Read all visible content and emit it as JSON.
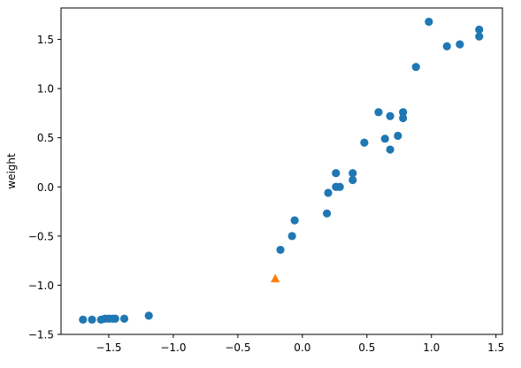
{
  "chart_data": {
    "type": "scatter",
    "title": "",
    "xlabel": "",
    "ylabel": "weight",
    "xlim": [
      -1.87,
      1.55
    ],
    "ylim": [
      -1.5,
      1.82
    ],
    "grid": false,
    "xticks": [
      -1.5,
      -1.0,
      -0.5,
      0.0,
      0.5,
      1.0,
      1.5
    ],
    "xtick_labels": [
      "−1.5",
      "−1.0",
      "−0.5",
      "0.0",
      "0.5",
      "1.0",
      "1.5"
    ],
    "yticks": [
      -1.5,
      -1.0,
      -0.5,
      0.0,
      0.5,
      1.0,
      1.5
    ],
    "ytick_labels": [
      "−1.5",
      "−1.0",
      "−0.5",
      "0.0",
      "0.5",
      "1.0",
      "1.5"
    ],
    "series": [
      {
        "marker": "circle",
        "color": "#1f77b4",
        "points": [
          [
            -1.7,
            -1.35
          ],
          [
            -1.63,
            -1.35
          ],
          [
            -1.56,
            -1.35
          ],
          [
            -1.53,
            -1.34
          ],
          [
            -1.5,
            -1.34
          ],
          [
            -1.47,
            -1.34
          ],
          [
            -1.45,
            -1.34
          ],
          [
            -1.38,
            -1.34
          ],
          [
            -1.19,
            -1.31
          ],
          [
            -0.17,
            -0.64
          ],
          [
            -0.08,
            -0.5
          ],
          [
            -0.06,
            -0.34
          ],
          [
            0.19,
            -0.27
          ],
          [
            0.2,
            -0.06
          ],
          [
            0.26,
            0.0
          ],
          [
            0.26,
            0.14
          ],
          [
            0.29,
            0.0
          ],
          [
            0.39,
            0.14
          ],
          [
            0.39,
            0.07
          ],
          [
            0.48,
            0.45
          ],
          [
            0.59,
            0.76
          ],
          [
            0.64,
            0.49
          ],
          [
            0.68,
            0.38
          ],
          [
            0.68,
            0.72
          ],
          [
            0.74,
            0.52
          ],
          [
            0.78,
            0.76
          ],
          [
            0.78,
            0.7
          ],
          [
            0.88,
            1.22
          ],
          [
            0.98,
            1.68
          ],
          [
            1.12,
            1.43
          ],
          [
            1.22,
            1.45
          ],
          [
            1.37,
            1.6
          ],
          [
            1.37,
            1.53
          ]
        ]
      },
      {
        "marker": "triangle",
        "color": "#ff7f0e",
        "points": [
          [
            -0.21,
            -0.93
          ]
        ]
      }
    ]
  }
}
